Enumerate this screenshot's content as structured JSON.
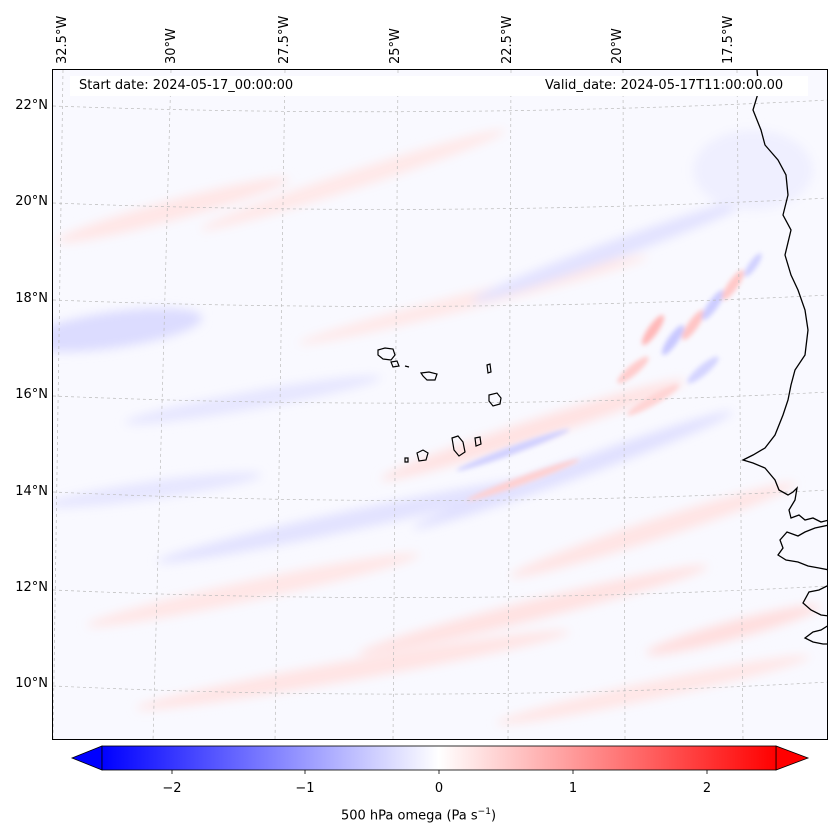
{
  "header": {
    "start_date": "Start date: 2024-05-17_00:00:00",
    "valid_date": "Valid_date: 2024-05-17T11:00:00.00"
  },
  "axes": {
    "lon_labels": [
      "32.5°W",
      "30°W",
      "27.5°W",
      "25°W",
      "22.5°W",
      "20°W",
      "17.5°W"
    ],
    "lat_labels": [
      "22°N",
      "20°N",
      "18°N",
      "16°N",
      "14°N",
      "12°N",
      "10°N"
    ]
  },
  "colorbar": {
    "ticks": [
      "−2",
      "−1",
      "0",
      "1",
      "2"
    ],
    "label": "500 hPa omega (Pa s",
    "label_exp": "−1",
    "label_close": ")",
    "min": -2.6,
    "max": 2.6,
    "low_color": "#0000ff",
    "mid_color": "#ffffff",
    "high_color": "#ff0000"
  },
  "map": {
    "field": "500 hPa omega",
    "region": "Cabo Verde / West African coast"
  }
}
